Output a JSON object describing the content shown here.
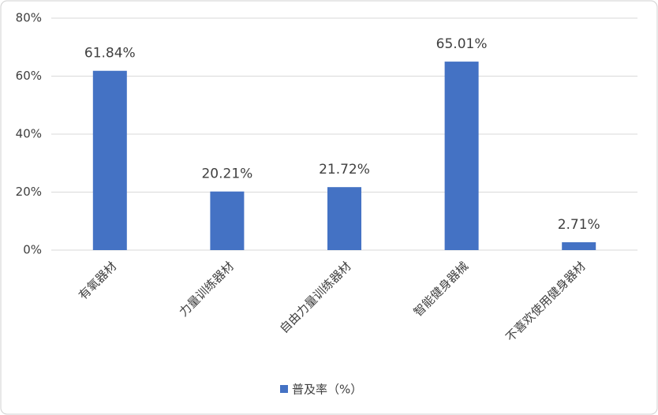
{
  "chart_data": {
    "type": "bar",
    "categories": [
      "有氧器材",
      "力量训练器材",
      "自由力量训练器材",
      "智能健身器械",
      "不喜欢使用健身器材"
    ],
    "series": [
      {
        "name": "普及率（%）",
        "color": "#4472c4",
        "values": [
          61.84,
          20.21,
          21.72,
          65.01,
          2.71
        ],
        "value_labels": [
          "61.84%",
          "20.21%",
          "21.72%",
          "65.01%",
          "2.71%"
        ]
      }
    ],
    "ylim": [
      0,
      80
    ],
    "yticks": [
      {
        "value": 0,
        "label": "0%"
      },
      {
        "value": 20,
        "label": "20%"
      },
      {
        "value": 40,
        "label": "40%"
      },
      {
        "value": 60,
        "label": "60%"
      },
      {
        "value": 80,
        "label": "80%"
      }
    ],
    "grid": true,
    "legend": "bottom"
  }
}
